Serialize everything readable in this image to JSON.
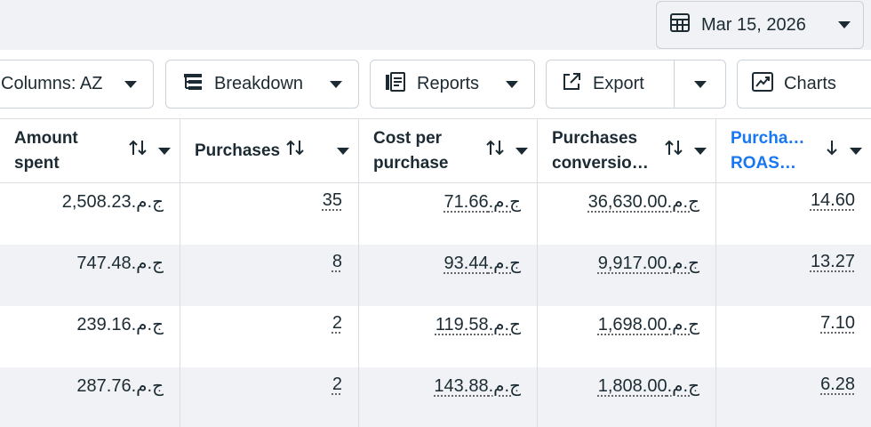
{
  "date_picker": {
    "label": "Mar 15, 2026",
    "icon": "calendar-icon"
  },
  "toolbar": {
    "columns_label": "Columns: AZ",
    "breakdown_label": "Breakdown",
    "reports_label": "Reports",
    "export_label": "Export",
    "charts_label": "Charts"
  },
  "table": {
    "headers": [
      {
        "line1": "Amount",
        "line2": "spent"
      },
      {
        "line1": "Purchases",
        "line2": ""
      },
      {
        "line1": "Cost per",
        "line2": "purchase"
      },
      {
        "line1": "Purchases",
        "line2": "conversio…"
      },
      {
        "line1": "Purcha…",
        "line2": "ROAS…"
      }
    ],
    "rows": [
      {
        "amount": "ج.م.2,508.23",
        "purchases": "35",
        "cpp": "ج.م.71.66",
        "conv": "ج.م.36,630.00",
        "roas": "14.60"
      },
      {
        "amount": "ج.م.747.48",
        "purchases": "8",
        "cpp": "ج.م.93.44",
        "conv": "ج.م.9,917.00",
        "roas": "13.27"
      },
      {
        "amount": "ج.م.239.16",
        "purchases": "2",
        "cpp": "ج.م.119.58",
        "conv": "ج.م.1,698.00",
        "roas": "7.10"
      },
      {
        "amount": "ج.م.287.76",
        "purchases": "2",
        "cpp": "ج.م.143.88",
        "conv": "ج.م.1,808.00",
        "roas": "6.28"
      }
    ]
  },
  "colors": {
    "accent": "#1877f2",
    "text": "#1c2b33",
    "border": "#cbd2d9",
    "row_alt": "#f0f2f5"
  }
}
